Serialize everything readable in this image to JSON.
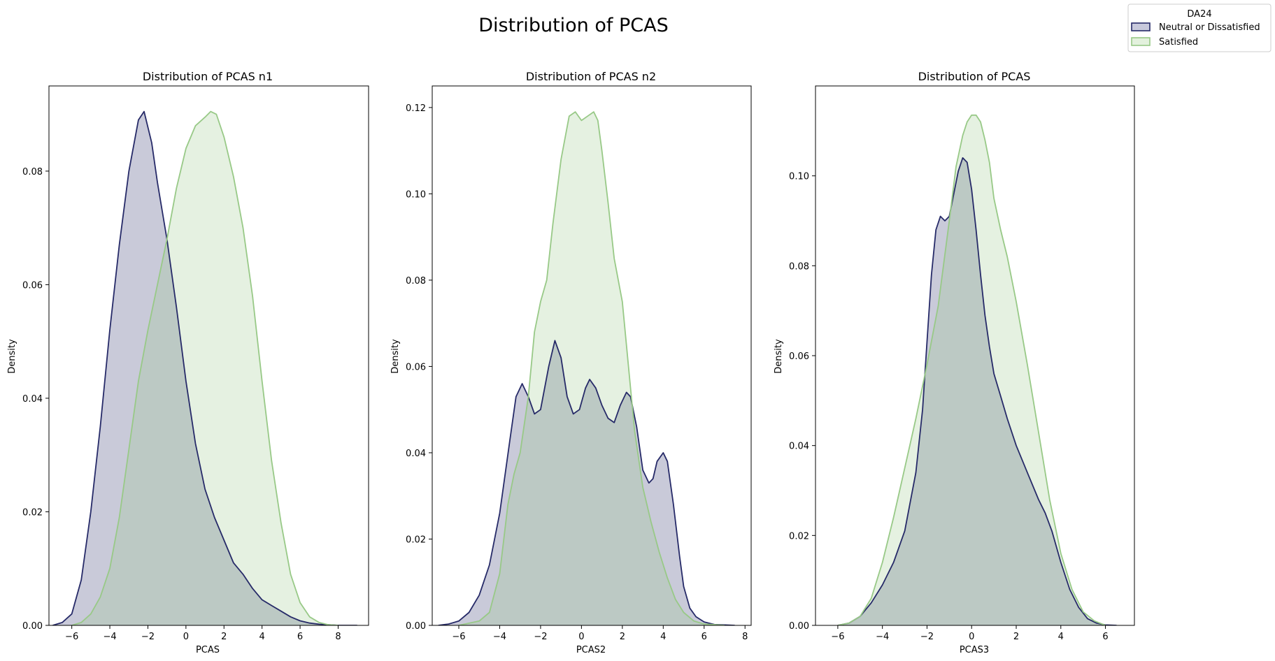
{
  "figure": {
    "title": "Distribution of PCAS"
  },
  "legend": {
    "title": "DA24",
    "entries": [
      {
        "label": "Neutral or Dissatisfied",
        "line_color": "#262a68",
        "fill_color": "#c8c9dc"
      },
      {
        "label": "Satisfied",
        "line_color": "#98c987",
        "fill_color": "#e3f1dd"
      }
    ]
  },
  "chart_data": [
    {
      "type": "area",
      "title": "Distribution of PCAS n1",
      "xlabel": "PCAS",
      "ylabel": "Density",
      "xlim": [
        -7.2,
        9.6
      ],
      "ylim": [
        0,
        0.095
      ],
      "xticks": [
        -6,
        -4,
        -2,
        0,
        2,
        4,
        6,
        8
      ],
      "yticks": [
        0.0,
        0.02,
        0.04,
        0.06,
        0.08
      ],
      "ytick_decimals": 2,
      "series": [
        {
          "name": "Neutral or Dissatisfied",
          "x": [
            -7.0,
            -6.5,
            -6.0,
            -5.5,
            -5.0,
            -4.5,
            -4.0,
            -3.5,
            -3.0,
            -2.5,
            -2.2,
            -1.8,
            -1.5,
            -1.0,
            -0.5,
            0,
            0.5,
            1.0,
            1.5,
            2.0,
            2.5,
            3.0,
            3.5,
            4.0,
            4.5,
            5.0,
            5.5,
            6.0,
            6.5,
            7.0,
            7.5,
            8.0,
            8.5,
            9.0
          ],
          "y": [
            0,
            0.0005,
            0.002,
            0.008,
            0.02,
            0.035,
            0.052,
            0.067,
            0.08,
            0.089,
            0.0905,
            0.085,
            0.078,
            0.068,
            0.056,
            0.043,
            0.032,
            0.024,
            0.019,
            0.015,
            0.011,
            0.009,
            0.0065,
            0.0045,
            0.0035,
            0.0025,
            0.0015,
            0.0008,
            0.0004,
            0.0002,
            0.0001,
            0,
            0,
            0
          ]
        },
        {
          "name": "Satisfied",
          "x": [
            -6.0,
            -5.5,
            -5.0,
            -4.5,
            -4.0,
            -3.5,
            -3.0,
            -2.5,
            -2.0,
            -1.5,
            -1.0,
            -0.5,
            0,
            0.5,
            1.0,
            1.3,
            1.6,
            2.0,
            2.5,
            3.0,
            3.5,
            4.0,
            4.5,
            5.0,
            5.5,
            6.0,
            6.5,
            7.0,
            7.5,
            8.0
          ],
          "y": [
            0,
            0.0005,
            0.002,
            0.005,
            0.01,
            0.019,
            0.031,
            0.043,
            0.052,
            0.06,
            0.068,
            0.077,
            0.084,
            0.088,
            0.0895,
            0.0905,
            0.09,
            0.086,
            0.079,
            0.07,
            0.058,
            0.043,
            0.029,
            0.018,
            0.009,
            0.004,
            0.0015,
            0.0005,
            0.0001,
            0
          ]
        }
      ]
    },
    {
      "type": "area",
      "title": "Distribution of PCAS n2",
      "xlabel": "PCAS2",
      "ylabel": "Density",
      "xlim": [
        -7.3,
        8.3
      ],
      "ylim": [
        0,
        0.125
      ],
      "xticks": [
        -6,
        -4,
        -2,
        0,
        2,
        4,
        6,
        8
      ],
      "yticks": [
        0.0,
        0.02,
        0.04,
        0.06,
        0.08,
        0.1,
        0.12
      ],
      "ytick_decimals": 2,
      "series": [
        {
          "name": "Neutral or Dissatisfied",
          "x": [
            -7.0,
            -6.5,
            -6.0,
            -5.5,
            -5.0,
            -4.5,
            -4.0,
            -3.5,
            -3.2,
            -2.9,
            -2.6,
            -2.3,
            -2.0,
            -1.6,
            -1.3,
            -1.0,
            -0.7,
            -0.4,
            -0.1,
            0.2,
            0.4,
            0.7,
            1.0,
            1.3,
            1.6,
            1.9,
            2.2,
            2.4,
            2.7,
            3.0,
            3.3,
            3.5,
            3.7,
            4.0,
            4.2,
            4.5,
            4.8,
            5.0,
            5.3,
            5.6,
            6.0,
            6.5,
            7.0,
            7.5
          ],
          "y": [
            0,
            0.0003,
            0.001,
            0.003,
            0.007,
            0.014,
            0.026,
            0.043,
            0.053,
            0.056,
            0.053,
            0.049,
            0.05,
            0.06,
            0.066,
            0.062,
            0.053,
            0.049,
            0.05,
            0.055,
            0.057,
            0.055,
            0.051,
            0.048,
            0.047,
            0.051,
            0.054,
            0.053,
            0.046,
            0.036,
            0.033,
            0.034,
            0.038,
            0.04,
            0.038,
            0.028,
            0.016,
            0.009,
            0.004,
            0.002,
            0.0008,
            0.0002,
            0.0001,
            0
          ]
        },
        {
          "name": "Satisfied",
          "x": [
            -6.0,
            -5.0,
            -4.5,
            -4.0,
            -3.6,
            -3.3,
            -3.0,
            -2.6,
            -2.3,
            -2.0,
            -1.7,
            -1.4,
            -1.0,
            -0.6,
            -0.3,
            0,
            0.3,
            0.6,
            0.8,
            1.0,
            1.3,
            1.6,
            2.0,
            2.3,
            2.6,
            3.0,
            3.4,
            3.8,
            4.2,
            4.6,
            5.0,
            5.5,
            6.0,
            7.0
          ],
          "y": [
            0,
            0.001,
            0.003,
            0.012,
            0.028,
            0.035,
            0.04,
            0.053,
            0.068,
            0.075,
            0.08,
            0.093,
            0.108,
            0.118,
            0.119,
            0.117,
            0.118,
            0.119,
            0.117,
            0.11,
            0.098,
            0.085,
            0.075,
            0.06,
            0.045,
            0.032,
            0.024,
            0.017,
            0.011,
            0.006,
            0.003,
            0.001,
            0.0003,
            0
          ]
        }
      ]
    },
    {
      "type": "area",
      "title": "Distribution of PCAS",
      "xlabel": "PCAS3",
      "ylabel": "Density",
      "xlim": [
        -7.0,
        7.3
      ],
      "ylim": [
        0,
        0.12
      ],
      "xticks": [
        -6,
        -4,
        -2,
        0,
        2,
        4,
        6
      ],
      "yticks": [
        0.0,
        0.02,
        0.04,
        0.06,
        0.08,
        0.1
      ],
      "ytick_decimals": 2,
      "series": [
        {
          "name": "Neutral or Dissatisfied",
          "x": [
            -6.0,
            -5.5,
            -5.0,
            -4.5,
            -4.0,
            -3.5,
            -3.0,
            -2.5,
            -2.2,
            -2.0,
            -1.8,
            -1.6,
            -1.4,
            -1.2,
            -1.0,
            -0.8,
            -0.6,
            -0.4,
            -0.2,
            0,
            0.2,
            0.4,
            0.6,
            0.8,
            1.0,
            1.3,
            1.6,
            2.0,
            2.5,
            3.0,
            3.3,
            3.6,
            4.0,
            4.4,
            4.8,
            5.2,
            5.6,
            6.0,
            6.5
          ],
          "y": [
            0,
            0.0005,
            0.002,
            0.005,
            0.009,
            0.014,
            0.021,
            0.034,
            0.048,
            0.063,
            0.078,
            0.088,
            0.091,
            0.09,
            0.091,
            0.096,
            0.101,
            0.104,
            0.103,
            0.097,
            0.088,
            0.078,
            0.069,
            0.062,
            0.056,
            0.051,
            0.046,
            0.04,
            0.034,
            0.028,
            0.025,
            0.021,
            0.014,
            0.008,
            0.004,
            0.0015,
            0.0005,
            0.0001,
            0
          ]
        },
        {
          "name": "Satisfied",
          "x": [
            -6.0,
            -5.5,
            -5.0,
            -4.5,
            -4.0,
            -3.5,
            -3.0,
            -2.5,
            -2.0,
            -1.5,
            -1.0,
            -0.7,
            -0.4,
            -0.2,
            0,
            0.2,
            0.4,
            0.6,
            0.8,
            1.0,
            1.3,
            1.6,
            2.0,
            2.5,
            3.0,
            3.5,
            4.0,
            4.5,
            5.0,
            5.5,
            6.0
          ],
          "y": [
            0,
            0.0005,
            0.002,
            0.006,
            0.014,
            0.024,
            0.035,
            0.046,
            0.058,
            0.071,
            0.09,
            0.102,
            0.109,
            0.112,
            0.1135,
            0.1135,
            0.112,
            0.108,
            0.103,
            0.095,
            0.088,
            0.082,
            0.072,
            0.058,
            0.043,
            0.028,
            0.016,
            0.008,
            0.003,
            0.001,
            0
          ]
        }
      ]
    }
  ]
}
